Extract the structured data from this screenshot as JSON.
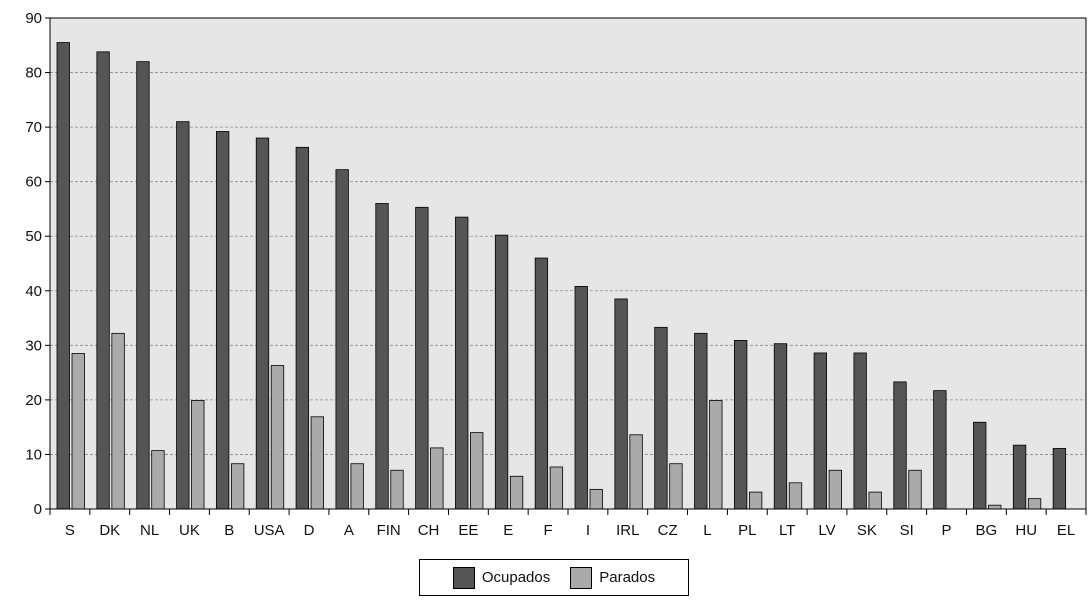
{
  "chart_data": {
    "type": "bar",
    "categories": [
      "S",
      "DK",
      "NL",
      "UK",
      "B",
      "USA",
      "D",
      "A",
      "FIN",
      "CH",
      "EE",
      "E",
      "F",
      "I",
      "IRL",
      "CZ",
      "L",
      "PL",
      "LT",
      "LV",
      "SK",
      "SI",
      "P",
      "BG",
      "HU",
      "EL"
    ],
    "series": [
      {
        "name": "Ocupados",
        "color": "#555555",
        "values": [
          85.5,
          83.8,
          82,
          71,
          69.2,
          68,
          66.3,
          62.2,
          56,
          55.3,
          53.5,
          50.2,
          46,
          40.8,
          38.5,
          33.3,
          32.2,
          30.9,
          30.3,
          28.6,
          28.6,
          23.3,
          21.7,
          15.9,
          11.7,
          11.1
        ]
      },
      {
        "name": "Parados",
        "color": "#aaaaaa",
        "values": [
          28.5,
          32.2,
          10.7,
          19.9,
          8.3,
          26.3,
          16.9,
          8.3,
          7.1,
          11.2,
          14,
          6,
          7.7,
          3.6,
          13.6,
          8.3,
          19.9,
          3.1,
          4.8,
          7.1,
          3.1,
          7.1,
          0,
          0.7,
          1.9,
          0
        ]
      }
    ],
    "y_ticks": [
      "0",
      "10",
      "20",
      "30",
      "40",
      "50",
      "60",
      "70",
      "80",
      "90"
    ],
    "ylim": [
      0,
      90
    ],
    "grid": true,
    "legend_position": "bottom-center",
    "plot_background": "#e6e6e6"
  }
}
